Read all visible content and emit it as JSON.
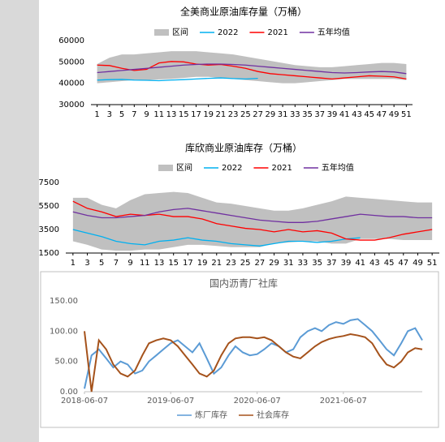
{
  "chart_data": [
    {
      "type": "line",
      "title": "全美商业原油库存量（万桶）",
      "x": [
        1,
        3,
        5,
        7,
        9,
        11,
        13,
        15,
        17,
        19,
        21,
        23,
        25,
        27,
        29,
        31,
        33,
        35,
        37,
        39,
        41,
        43,
        45,
        47,
        49,
        51
      ],
      "xlim": [
        0,
        52
      ],
      "xticks": [
        1,
        3,
        5,
        7,
        9,
        11,
        13,
        15,
        17,
        19,
        21,
        23,
        25,
        27,
        29,
        31,
        33,
        35,
        37,
        39,
        41,
        43,
        45,
        47,
        49,
        51
      ],
      "ylim": [
        30000,
        60000
      ],
      "yticks": [
        30000,
        40000,
        50000,
        60000
      ],
      "series": [
        {
          "name": "区间",
          "type": "band",
          "color": "#c0c0c0",
          "lower": [
            40000,
            40500,
            41000,
            41500,
            41500,
            41800,
            42000,
            42500,
            43000,
            43000,
            42500,
            42000,
            41500,
            41000,
            40500,
            40000,
            40000,
            40500,
            41000,
            41500,
            42000,
            42000,
            42000,
            42000,
            42000,
            41500
          ],
          "upper": [
            49000,
            52000,
            53500,
            53500,
            54000,
            54500,
            55000,
            55000,
            55000,
            54500,
            54000,
            53500,
            52500,
            51500,
            50500,
            49500,
            48500,
            48000,
            47500,
            47500,
            48000,
            48500,
            49000,
            49500,
            49500,
            49000
          ]
        },
        {
          "name": "2022",
          "color": "#00b0f0",
          "values": [
            41500,
            41700,
            41800,
            41500,
            41400,
            41200,
            41500,
            41700,
            42000,
            42300,
            42500,
            42200,
            42000,
            42300,
            null,
            null,
            null,
            null,
            null,
            null,
            null,
            null,
            null,
            null,
            null,
            null
          ]
        },
        {
          "name": "2021",
          "color": "#ff0000",
          "values": [
            48500,
            48300,
            47000,
            46000,
            46500,
            49500,
            50200,
            50000,
            49000,
            48500,
            48800,
            48000,
            47000,
            45500,
            44500,
            44000,
            43500,
            43000,
            42500,
            42000,
            42500,
            43000,
            43500,
            43300,
            43000,
            42000
          ]
        },
        {
          "name": "五年均值",
          "color": "#7030a0",
          "values": [
            45000,
            45500,
            46000,
            46500,
            47000,
            47500,
            48000,
            48500,
            48800,
            49000,
            49000,
            48800,
            48500,
            48000,
            47500,
            47000,
            46500,
            46000,
            45500,
            45000,
            44800,
            45000,
            45300,
            45500,
            45300,
            44500
          ]
        }
      ]
    },
    {
      "type": "line",
      "title": "库欣商业原油库存（万桶）",
      "x": [
        1,
        3,
        5,
        7,
        9,
        11,
        13,
        15,
        17,
        19,
        21,
        23,
        25,
        27,
        29,
        31,
        33,
        35,
        37,
        39,
        41,
        43,
        45,
        47,
        49,
        51
      ],
      "xlim": [
        0,
        52
      ],
      "xticks": [
        1,
        3,
        5,
        7,
        9,
        11,
        13,
        15,
        17,
        19,
        21,
        23,
        25,
        27,
        29,
        31,
        33,
        35,
        37,
        39,
        41,
        43,
        45,
        47,
        49,
        51
      ],
      "ylim": [
        1500,
        7500
      ],
      "yticks": [
        1500,
        3500,
        5500,
        7500
      ],
      "series": [
        {
          "name": "区间",
          "type": "band",
          "color": "#c0c0c0",
          "lower": [
            2500,
            2200,
            1800,
            1700,
            1700,
            1800,
            1800,
            2000,
            2200,
            2200,
            2100,
            2000,
            2000,
            2000,
            2300,
            2400,
            2500,
            2500,
            2300,
            2300,
            2700,
            2700,
            2700,
            2600,
            2600,
            2600
          ],
          "upper": [
            6200,
            6200,
            5600,
            5300,
            6000,
            6500,
            6600,
            6700,
            6600,
            6200,
            5800,
            5700,
            5500,
            5300,
            5100,
            5100,
            5300,
            5600,
            5900,
            6300,
            6200,
            6100,
            6000,
            5900,
            5800,
            5800
          ]
        },
        {
          "name": "2022",
          "color": "#00b0f0",
          "values": [
            3500,
            3200,
            2900,
            2500,
            2300,
            2200,
            2500,
            2600,
            2800,
            2600,
            2500,
            2300,
            2200,
            2100,
            2300,
            2500,
            2500,
            2400,
            2500,
            2700,
            2800,
            null,
            null,
            null,
            null,
            null
          ]
        },
        {
          "name": "2021",
          "color": "#ff0000",
          "values": [
            5900,
            5300,
            5000,
            4600,
            4800,
            4700,
            4800,
            4600,
            4600,
            4400,
            4000,
            3800,
            3600,
            3500,
            3300,
            3500,
            3300,
            3400,
            3200,
            2700,
            2600,
            2600,
            2800,
            3100,
            3300,
            3500
          ]
        },
        {
          "name": "五年均值",
          "color": "#7030a0",
          "values": [
            5000,
            4700,
            4500,
            4500,
            4600,
            4700,
            5000,
            5200,
            5300,
            5100,
            4900,
            4700,
            4500,
            4300,
            4200,
            4100,
            4100,
            4200,
            4400,
            4600,
            4800,
            4700,
            4600,
            4600,
            4500,
            4500
          ]
        }
      ]
    },
    {
      "type": "line",
      "title": "国内沥青厂社库",
      "x": [
        "2018-06-07",
        "2018-07-07",
        "2018-08-07",
        "2018-09-07",
        "2018-10-07",
        "2018-11-07",
        "2018-12-07",
        "2019-01-07",
        "2019-02-07",
        "2019-03-07",
        "2019-04-07",
        "2019-05-07",
        "2019-06-07",
        "2019-07-07",
        "2019-08-07",
        "2019-09-07",
        "2019-10-07",
        "2019-11-07",
        "2019-12-07",
        "2020-01-07",
        "2020-02-07",
        "2020-03-07",
        "2020-04-07",
        "2020-05-07",
        "2020-06-07",
        "2020-07-07",
        "2020-08-07",
        "2020-09-07",
        "2020-10-07",
        "2020-11-07",
        "2020-12-07",
        "2021-01-07",
        "2021-02-07",
        "2021-03-07",
        "2021-04-07",
        "2021-05-07",
        "2021-06-07",
        "2021-07-07",
        "2021-08-07",
        "2021-09-07",
        "2021-10-07",
        "2021-11-07",
        "2021-12-07",
        "2022-01-07",
        "2022-02-07",
        "2022-03-07",
        "2022-04-07",
        "2022-05-07"
      ],
      "xlim": [
        "2018-06-07",
        "2022-05-07"
      ],
      "xticks": [
        "2018-06-07",
        "2019-06-07",
        "2020-06-07",
        "2021-06-07"
      ],
      "ylim": [
        0,
        150
      ],
      "yticks": [
        {
          "value": 0,
          "label": "0.00"
        },
        {
          "value": 50,
          "label": "50.00"
        },
        {
          "value": 100,
          "label": "100.00"
        },
        {
          "value": 150,
          "label": "150.00"
        }
      ],
      "series": [
        {
          "name": "炼厂库存",
          "color": "#5b9bd5",
          "values": [
            5,
            60,
            70,
            55,
            40,
            50,
            45,
            30,
            35,
            50,
            60,
            70,
            80,
            85,
            75,
            65,
            80,
            55,
            30,
            40,
            60,
            75,
            65,
            60,
            62,
            70,
            80,
            75,
            65,
            70,
            90,
            100,
            105,
            100,
            110,
            115,
            112,
            118,
            120,
            110,
            100,
            85,
            70,
            60,
            80,
            100,
            105,
            85
          ]
        },
        {
          "name": "社会库存",
          "color": "#a5521b",
          "values": [
            100,
            0,
            85,
            70,
            45,
            30,
            25,
            35,
            60,
            80,
            85,
            88,
            85,
            75,
            60,
            45,
            30,
            25,
            35,
            60,
            80,
            88,
            90,
            90,
            88,
            90,
            85,
            75,
            65,
            58,
            55,
            65,
            75,
            82,
            87,
            90,
            92,
            95,
            93,
            90,
            80,
            60,
            45,
            40,
            50,
            65,
            72,
            70
          ]
        }
      ]
    }
  ]
}
